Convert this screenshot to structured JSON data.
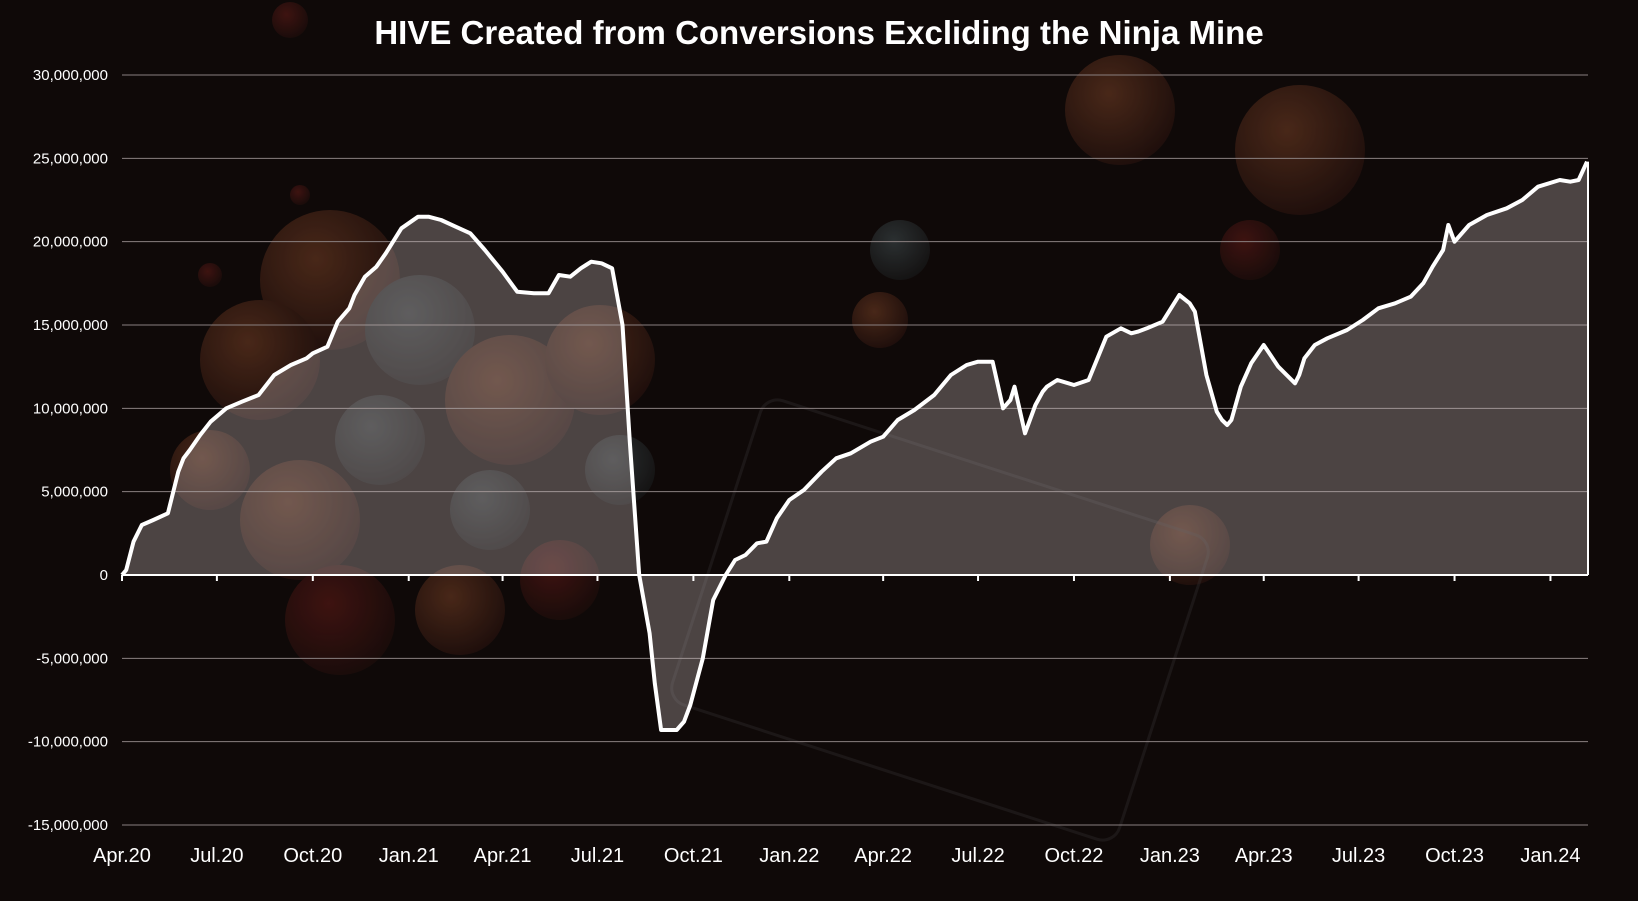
{
  "chart_data": {
    "type": "area",
    "title": "HIVE Created from Conversions Excliding the Ninja Mine",
    "xlabel": "",
    "ylabel": "",
    "ylim": [
      -15000000,
      30000000
    ],
    "yticks": [
      30000000,
      25000000,
      20000000,
      15000000,
      10000000,
      5000000,
      0,
      -5000000,
      -10000000,
      -15000000
    ],
    "ytick_labels": [
      "30,000,000",
      "25,000,000",
      "20,000,000",
      "15,000,000",
      "10,000,000",
      "5,000,000",
      "0",
      "-5,000,000",
      "-10,000,000",
      "-15,000,000"
    ],
    "xlim": [
      "2020-04-01",
      "2024-02-06"
    ],
    "xtick_dates": [
      "2020-04-01",
      "2020-07-01",
      "2020-10-01",
      "2021-01-01",
      "2021-04-01",
      "2021-07-01",
      "2021-10-01",
      "2022-01-01",
      "2022-04-01",
      "2022-07-01",
      "2022-10-01",
      "2023-01-01",
      "2023-04-01",
      "2023-07-01",
      "2023-10-01",
      "2024-01-01"
    ],
    "xtick_labels": [
      "Apr.20",
      "Jul.20",
      "Oct.20",
      "Jan.21",
      "Apr.21",
      "Jul.21",
      "Oct.21",
      "Jan.22",
      "Apr.22",
      "Jul.22",
      "Oct.22",
      "Jan.23",
      "Apr.23",
      "Jul.23",
      "Oct.23",
      "Jan.24"
    ],
    "grid": true,
    "colors": {
      "line": "#ffffff",
      "fill": "#c8bcbc",
      "grid": "#8a8080",
      "axis": "#ffffff",
      "text": "#ffffff"
    },
    "series": [
      {
        "x": [
          "2020-04-01",
          "2020-04-05",
          "2020-04-12",
          "2020-04-20",
          "2020-05-01",
          "2020-05-15",
          "2020-05-25",
          "2020-05-30",
          "2020-06-05",
          "2020-06-15",
          "2020-06-25",
          "2020-07-10",
          "2020-07-25",
          "2020-08-10",
          "2020-08-25",
          "2020-09-10",
          "2020-09-25",
          "2020-10-01",
          "2020-10-15",
          "2020-10-25",
          "2020-11-05",
          "2020-11-10",
          "2020-11-20",
          "2020-12-01",
          "2020-12-10",
          "2020-12-25",
          "2021-01-10",
          "2021-01-20",
          "2021-02-01",
          "2021-02-15",
          "2021-03-01",
          "2021-03-15",
          "2021-04-01",
          "2021-04-15",
          "2021-05-01",
          "2021-05-15",
          "2021-05-25",
          "2021-06-05",
          "2021-06-15",
          "2021-06-20",
          "2021-06-25",
          "2021-07-05",
          "2021-07-15",
          "2021-07-25",
          "2021-08-01",
          "2021-08-10",
          "2021-08-20",
          "2021-08-25",
          "2021-08-31",
          "2021-09-05",
          "2021-09-10",
          "2021-09-15",
          "2021-09-22",
          "2021-09-28",
          "2021-10-10",
          "2021-10-20",
          "2021-11-01",
          "2021-11-10",
          "2021-11-20",
          "2021-12-01",
          "2021-12-10",
          "2021-12-20",
          "2022-01-01",
          "2022-01-15",
          "2022-02-01",
          "2022-02-15",
          "2022-03-01",
          "2022-03-20",
          "2022-04-01",
          "2022-04-15",
          "2022-05-01",
          "2022-05-20",
          "2022-06-05",
          "2022-06-20",
          "2022-07-01",
          "2022-07-15",
          "2022-07-25",
          "2022-08-01",
          "2022-08-05",
          "2022-08-15",
          "2022-08-25",
          "2022-09-01",
          "2022-09-05",
          "2022-09-15",
          "2022-10-01",
          "2022-10-15",
          "2022-11-01",
          "2022-11-15",
          "2022-11-25",
          "2022-12-01",
          "2022-12-10",
          "2022-12-25",
          "2023-01-10",
          "2023-01-20",
          "2023-01-25",
          "2023-02-05",
          "2023-02-15",
          "2023-02-20",
          "2023-02-25",
          "2023-03-01",
          "2023-03-10",
          "2023-03-20",
          "2023-04-01",
          "2023-04-15",
          "2023-05-01",
          "2023-05-05",
          "2023-05-10",
          "2023-05-20",
          "2023-06-01",
          "2023-06-20",
          "2023-07-05",
          "2023-07-20",
          "2023-08-05",
          "2023-08-20",
          "2023-09-01",
          "2023-09-10",
          "2023-09-20",
          "2023-09-25",
          "2023-10-01",
          "2023-10-15",
          "2023-11-01",
          "2023-11-20",
          "2023-12-05",
          "2023-12-20",
          "2024-01-10",
          "2024-01-20",
          "2024-01-28",
          "2024-02-05"
        ],
        "y": [
          0,
          300000,
          2000000,
          3000000,
          3300000,
          3700000,
          6200000,
          7000000,
          7500000,
          8400000,
          9200000,
          10000000,
          10400000,
          10800000,
          12000000,
          12600000,
          13000000,
          13300000,
          13700000,
          15200000,
          16000000,
          16800000,
          17900000,
          18500000,
          19300000,
          20800000,
          21500000,
          21500000,
          21300000,
          20900000,
          20500000,
          19500000,
          18200000,
          17000000,
          16900000,
          16900000,
          18000000,
          17900000,
          18400000,
          18600000,
          18800000,
          18700000,
          18400000,
          15000000,
          8000000,
          0,
          -3500000,
          -6500000,
          -9300000,
          -9300000,
          -9300000,
          -9300000,
          -8800000,
          -7800000,
          -5000000,
          -1500000,
          0,
          900000,
          1200000,
          1900000,
          2000000,
          3400000,
          4500000,
          5100000,
          6200000,
          7000000,
          7300000,
          8000000,
          8300000,
          9300000,
          9900000,
          10800000,
          12000000,
          12600000,
          12800000,
          12800000,
          10000000,
          10500000,
          11300000,
          8500000,
          10200000,
          11000000,
          11300000,
          11700000,
          11400000,
          11700000,
          14300000,
          14800000,
          14500000,
          14600000,
          14800000,
          15200000,
          16800000,
          16300000,
          15800000,
          12000000,
          9800000,
          9300000,
          9000000,
          9300000,
          11300000,
          12700000,
          13800000,
          12500000,
          11500000,
          12000000,
          13000000,
          13800000,
          14200000,
          14700000,
          15300000,
          16000000,
          16300000,
          16700000,
          17500000,
          18500000,
          19500000,
          21000000,
          20000000,
          21000000,
          21600000,
          22000000,
          22500000,
          23300000,
          23700000,
          23600000,
          23700000,
          24800000
        ]
      }
    ]
  }
}
